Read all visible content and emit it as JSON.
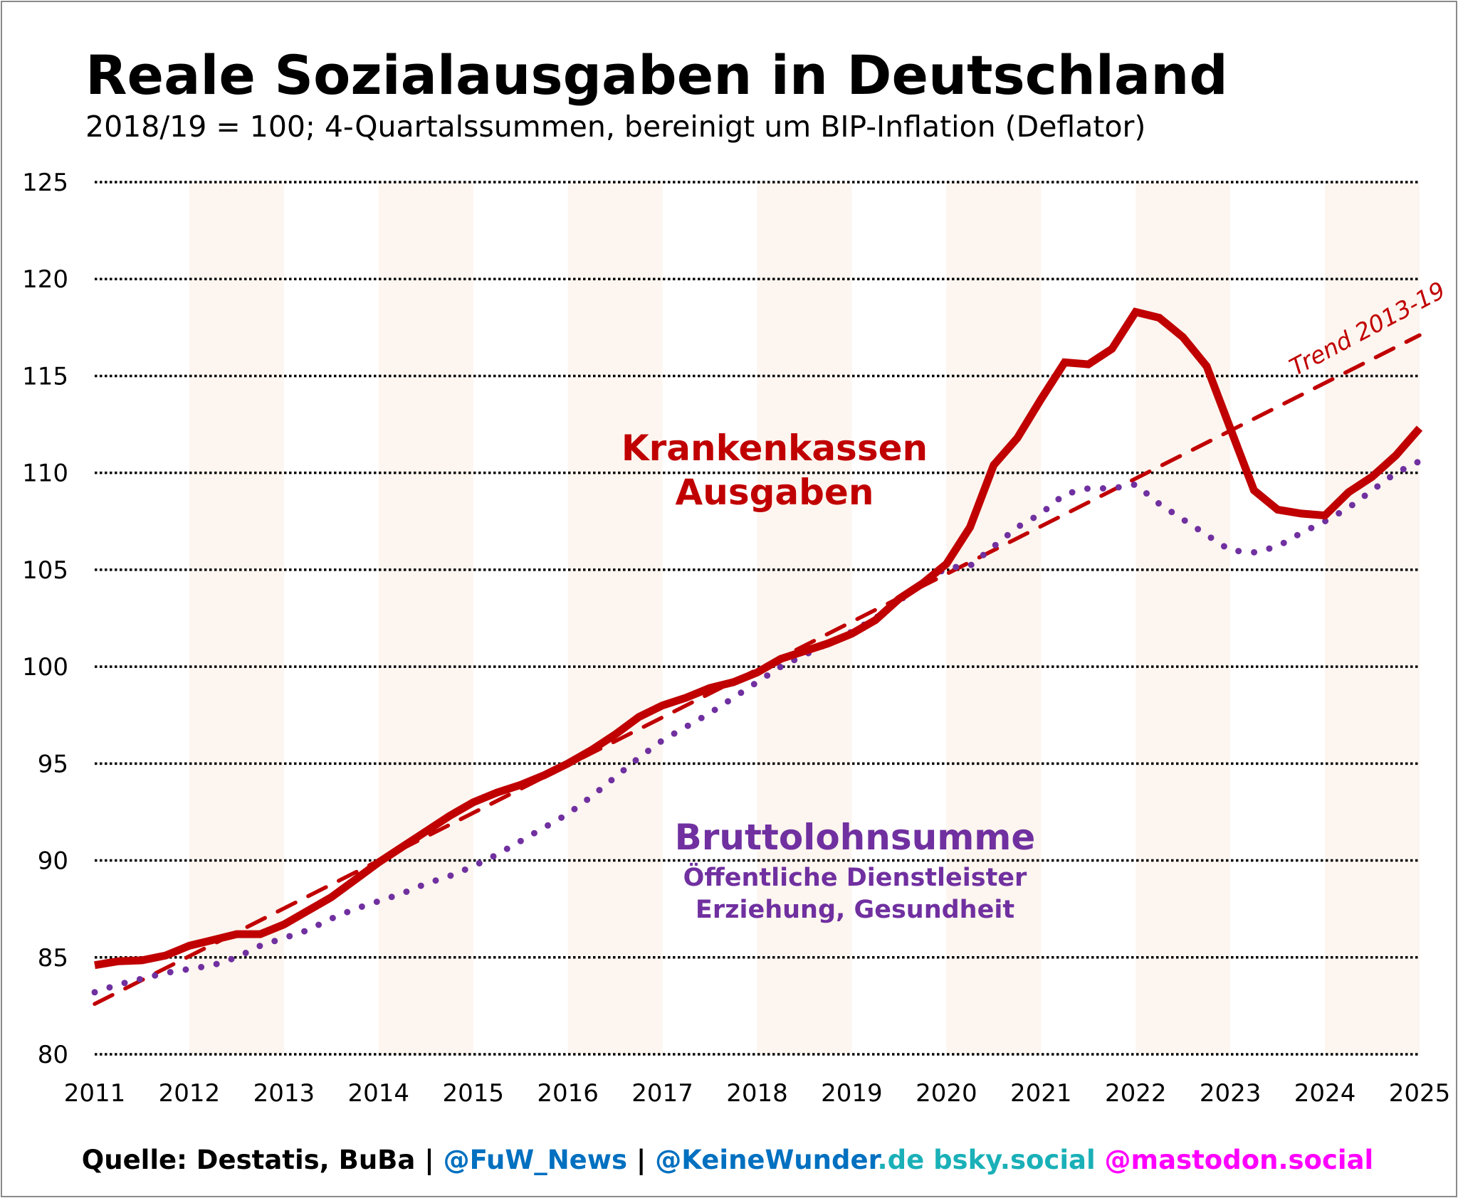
{
  "chart_data": {
    "type": "line",
    "title": "Reale Sozialausgaben in Deutschland",
    "subtitle": "2018/19 = 100; 4-Quartalssummen, bereinigt um BIP-Inflation (Deflator)",
    "xlabel": "",
    "ylabel": "",
    "xlim": [
      2011,
      2025
    ],
    "ylim": [
      80,
      125
    ],
    "x_ticks": [
      "2011",
      "2012",
      "2013",
      "2014",
      "2015",
      "2016",
      "2017",
      "2018",
      "2019",
      "2020",
      "2021",
      "2022",
      "2023",
      "2024",
      "2025"
    ],
    "y_ticks": [
      "80",
      "85",
      "90",
      "95",
      "100",
      "105",
      "110",
      "115",
      "120",
      "125"
    ],
    "grid": "horizontal dotted",
    "shaded_years": [
      2012,
      2014,
      2016,
      2018,
      2020,
      2022,
      2024
    ],
    "x": [
      2011,
      2011.25,
      2011.5,
      2011.75,
      2012,
      2012.25,
      2012.5,
      2012.75,
      2013,
      2013.25,
      2013.5,
      2013.75,
      2014,
      2014.25,
      2014.5,
      2014.75,
      2015,
      2015.25,
      2015.5,
      2015.75,
      2016,
      2016.25,
      2016.5,
      2016.75,
      2017,
      2017.25,
      2017.5,
      2017.75,
      2018,
      2018.25,
      2018.5,
      2018.75,
      2019,
      2019.25,
      2019.5,
      2019.75,
      2020,
      2020.25,
      2020.5,
      2020.75,
      2021,
      2021.25,
      2021.5,
      2021.75,
      2022,
      2022.25,
      2022.5,
      2022.75,
      2023,
      2023.25,
      2023.5,
      2023.75,
      2024,
      2024.25,
      2024.5,
      2024.75,
      2025
    ],
    "series": [
      {
        "name": "Krankenkassen Ausgaben",
        "color": "#c00000",
        "style": "solid",
        "values": [
          84.6,
          84.8,
          84.85,
          85.1,
          85.6,
          85.9,
          86.2,
          86.2,
          86.7,
          87.4,
          88.1,
          89.0,
          89.9,
          90.7,
          91.5,
          92.3,
          93.0,
          93.5,
          93.9,
          94.4,
          95.0,
          95.7,
          96.5,
          97.4,
          98.0,
          98.4,
          98.9,
          99.2,
          99.7,
          100.4,
          100.8,
          101.2,
          101.7,
          102.4,
          103.5,
          104.3,
          105.3,
          107.2,
          110.4,
          111.8,
          113.8,
          115.7,
          115.6,
          116.4,
          118.3,
          118.0,
          117.0,
          115.5,
          112.3,
          109.1,
          108.1,
          107.9,
          107.8,
          109.0,
          109.8,
          110.9,
          112.3
        ]
      },
      {
        "name": "Bruttolohnsumme",
        "color": "#7030a0",
        "style": "dotted",
        "values": [
          83.2,
          83.6,
          83.9,
          84.2,
          84.4,
          84.6,
          85.0,
          85.6,
          86.0,
          86.4,
          87.0,
          87.5,
          87.9,
          88.3,
          88.8,
          89.2,
          89.7,
          90.3,
          91.0,
          91.7,
          92.4,
          93.3,
          94.3,
          95.3,
          96.2,
          96.9,
          97.6,
          98.4,
          99.2,
          100.0,
          100.6,
          101.2,
          101.8,
          102.5,
          103.4,
          104.3,
          105.1,
          105.2,
          106.2,
          107.2,
          107.9,
          108.9,
          109.2,
          109.2,
          109.4,
          108.4,
          107.6,
          106.8,
          106.0,
          105.9,
          106.2,
          106.9,
          107.5,
          108.2,
          109.1,
          110.0,
          110.6
        ]
      },
      {
        "name": "Trend 2013-19",
        "color": "#c00000",
        "style": "dashed",
        "x": [
          2011,
          2025
        ],
        "values": [
          82.6,
          117.1
        ]
      }
    ],
    "annotations": {
      "kk_line1": "Krankenkassen",
      "kk_line2": "Ausgaben",
      "bl_title": "Bruttolohnsumme",
      "bl_line1": "Öffentliche Dienstleister",
      "bl_line2": "Erziehung, Gesundheit",
      "trend": "Trend 2013-19"
    },
    "colors": {
      "red": "#c00000",
      "purple": "#7030a0",
      "band": "#fdf5ef"
    }
  },
  "footer": {
    "source": "Quelle: Destatis, BuBa | ",
    "fuw": "@FuW_News",
    "sep": " | ",
    "keine": "@KeineWunder",
    "de": ".de bsky.social",
    "mastodon": " @mastodon.social",
    "colors": {
      "source": "#000000",
      "fuw": "#0070c0",
      "keine": "#0070c0",
      "de": "#1ab0b8",
      "mastodon": "#ff00ff"
    }
  }
}
